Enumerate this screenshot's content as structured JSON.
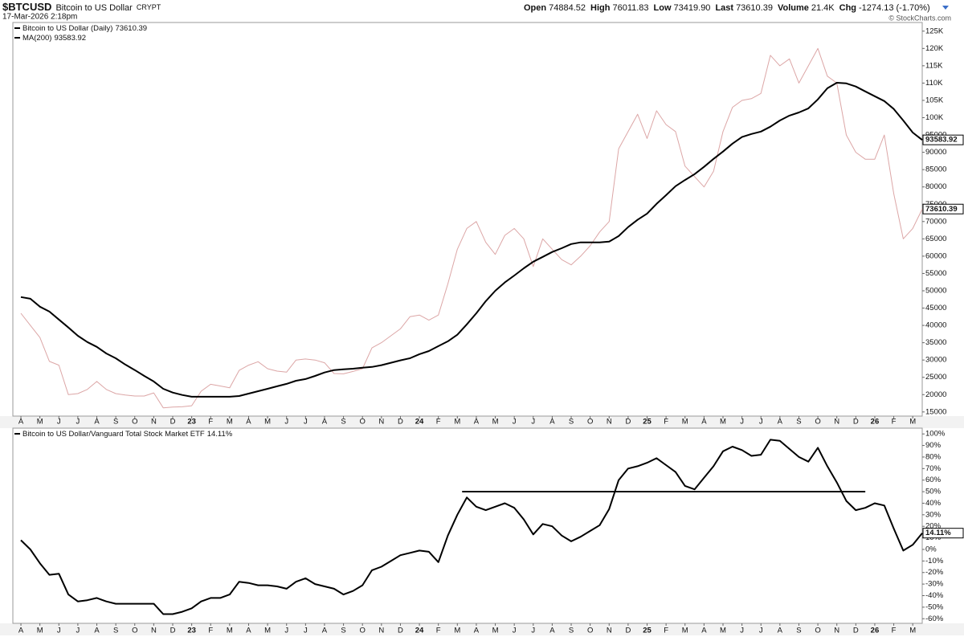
{
  "header": {
    "symbol": "$BTCUSD",
    "name": "Bitcoin to US Dollar",
    "exchange": "CRYPT",
    "datetime": "17-Mar-2026 2:18pm",
    "quote": [
      {
        "label": "Open",
        "value": "74884.52"
      },
      {
        "label": "High",
        "value": "76011.83"
      },
      {
        "label": "Low",
        "value": "73419.90"
      },
      {
        "label": "Last",
        "value": "73610.39"
      },
      {
        "label": "Volume",
        "value": "21.4K"
      },
      {
        "label": "Chg",
        "value": "-1274.13 (-1.70%)"
      }
    ],
    "credit": "© StockCharts.com"
  },
  "chart_data": [
    {
      "type": "line",
      "categories": [
        "A",
        null,
        "M",
        null,
        "J",
        null,
        "J",
        null,
        "A",
        null,
        "S",
        null,
        "O",
        null,
        "N",
        null,
        "D",
        null,
        "23",
        null,
        "F",
        null,
        "M",
        null,
        "A",
        null,
        "M",
        null,
        "J",
        null,
        "J",
        null,
        "A",
        null,
        "S",
        null,
        "O",
        null,
        "N",
        null,
        "D",
        null,
        "24",
        null,
        "F",
        null,
        "M",
        null,
        "A",
        null,
        "M",
        null,
        "J",
        null,
        "J",
        null,
        "A",
        null,
        "S",
        null,
        "O",
        null,
        "N",
        null,
        "D",
        null,
        "25",
        null,
        "F",
        null,
        "M",
        null,
        "A",
        null,
        "M",
        null,
        "J",
        null,
        "J",
        null,
        "A",
        null,
        "S",
        null,
        "O",
        null,
        "N",
        null,
        "D",
        null,
        "26",
        null,
        "F",
        null,
        "M",
        null
      ],
      "series": [
        {
          "name": "Bitcoin to US Dollar (Daily)",
          "color": "#dca6a6",
          "values": [
            43500,
            40000,
            36500,
            29600,
            28500,
            20000,
            20300,
            21500,
            23800,
            21500,
            20300,
            19900,
            19600,
            19600,
            20500,
            16200,
            16400,
            16500,
            16800,
            21000,
            23000,
            22500,
            22000,
            27000,
            28500,
            29500,
            27500,
            26800,
            26500,
            30000,
            30300,
            30000,
            29200,
            26100,
            26000,
            26700,
            27500,
            33500,
            35000,
            37000,
            39000,
            42500,
            43000,
            41500,
            43000,
            52000,
            62000,
            68000,
            70000,
            64000,
            60500,
            66000,
            68000,
            65000,
            57000,
            65000,
            62000,
            59000,
            57500,
            60000,
            63000,
            67000,
            70000,
            91000,
            96000,
            101000,
            94000,
            102000,
            98000,
            96000,
            86000,
            83000,
            80000,
            84500,
            96000,
            103000,
            105000,
            105500,
            107000,
            118000,
            115000,
            117000,
            110000,
            115000,
            120000,
            112000,
            110000,
            95000,
            90000,
            88000,
            88000,
            95000,
            78000,
            65000,
            68000,
            73610.39
          ]
        },
        {
          "name": "MA(200)",
          "color": "#000000",
          "values": [
            48200,
            47700,
            45400,
            44000,
            41700,
            39400,
            37000,
            35200,
            33800,
            31900,
            30500,
            28700,
            27100,
            25400,
            23800,
            21700,
            20600,
            19900,
            19400,
            19400,
            19400,
            19400,
            19400,
            19600,
            20300,
            21000,
            21700,
            22400,
            23100,
            24000,
            24500,
            25400,
            26400,
            27100,
            27300,
            27500,
            27800,
            28000,
            28500,
            29200,
            29900,
            30500,
            31700,
            32600,
            34000,
            35400,
            37300,
            40300,
            43500,
            47000,
            50000,
            52400,
            54400,
            56500,
            58400,
            59800,
            61200,
            62300,
            63500,
            64000,
            64000,
            64000,
            64200,
            65800,
            68400,
            70500,
            72300,
            75100,
            77600,
            80200,
            82000,
            83700,
            85800,
            88100,
            90200,
            92500,
            94400,
            95300,
            96000,
            97400,
            99200,
            100600,
            101500,
            102700,
            105300,
            108500,
            110100,
            109900,
            109000,
            107600,
            106200,
            104800,
            102500,
            99200,
            95700,
            93583.92
          ]
        }
      ],
      "ylim": [
        13800,
        127500
      ],
      "yticks": [
        15000,
        20000,
        25000,
        30000,
        35000,
        40000,
        45000,
        50000,
        55000,
        60000,
        65000,
        70000,
        75000,
        80000,
        85000,
        90000,
        95000,
        {
          "value": 100000,
          "label": "100K"
        },
        {
          "value": 105000,
          "label": "105K"
        },
        {
          "value": 110000,
          "label": "110K"
        },
        {
          "value": 115000,
          "label": "115K"
        },
        {
          "value": 120000,
          "label": "120K"
        },
        {
          "value": 125000,
          "label": "125K"
        }
      ],
      "grid": false
    },
    {
      "type": "line",
      "categories": [
        "A",
        null,
        "M",
        null,
        "J",
        null,
        "J",
        null,
        "A",
        null,
        "S",
        null,
        "O",
        null,
        "N",
        null,
        "D",
        null,
        "23",
        null,
        "F",
        null,
        "M",
        null,
        "A",
        null,
        "M",
        null,
        "J",
        null,
        "J",
        null,
        "A",
        null,
        "S",
        null,
        "O",
        null,
        "N",
        null,
        "D",
        null,
        "24",
        null,
        "F",
        null,
        "M",
        null,
        "A",
        null,
        "M",
        null,
        "J",
        null,
        "J",
        null,
        "A",
        null,
        "S",
        null,
        "O",
        null,
        "N",
        null,
        "D",
        null,
        "25",
        null,
        "F",
        null,
        "M",
        null,
        "A",
        null,
        "M",
        null,
        "J",
        null,
        "J",
        null,
        "A",
        null,
        "S",
        null,
        "O",
        null,
        "N",
        null,
        "D",
        null,
        "26",
        null,
        "F",
        null,
        "M",
        null
      ],
      "series": [
        {
          "name": "Bitcoin to US Dollar/Vanguard Total Stock Market ETF",
          "color": "#000000",
          "values": [
            8,
            0,
            -12,
            -22,
            -21,
            -39,
            -45,
            -44,
            -42,
            -45,
            -47,
            -47,
            -47,
            -47,
            -47,
            -56,
            -56,
            -54,
            -51,
            -45,
            -42,
            -42,
            -39,
            -28,
            -29,
            -31,
            -31,
            -32,
            -34,
            -28,
            -25,
            -30,
            -32,
            -34,
            -39,
            -36,
            -31,
            -18,
            -15,
            -10,
            -5,
            -3,
            -1,
            -2,
            -11,
            12,
            30,
            45,
            37,
            34,
            37,
            40,
            36,
            26,
            13,
            22,
            20,
            12,
            7,
            11,
            16,
            21,
            35,
            60,
            70,
            72,
            75,
            79,
            73,
            67,
            55,
            52,
            62,
            72,
            85,
            89,
            86,
            81,
            82,
            95,
            94,
            87,
            80,
            76,
            88,
            72,
            58,
            42,
            34,
            36,
            40,
            38,
            18,
            -1,
            4,
            14.11
          ],
          "value_labels": [
            null,
            null,
            null,
            null,
            null,
            null,
            null,
            null,
            null,
            null,
            null,
            null,
            null,
            null,
            null,
            null,
            null,
            null,
            null,
            null,
            null,
            null,
            null,
            null,
            null,
            null,
            null,
            null,
            null,
            null,
            null,
            null,
            null,
            null,
            null,
            null,
            null,
            null,
            null,
            null,
            null,
            null,
            null,
            null,
            null,
            null,
            null,
            null,
            null,
            null,
            null,
            null,
            null,
            null,
            null,
            null,
            null,
            null,
            null,
            null,
            null,
            null,
            null,
            null,
            null,
            null,
            null,
            null,
            null,
            null,
            null,
            null,
            null,
            null,
            null,
            null,
            null,
            null,
            null,
            null,
            null,
            null,
            null,
            null,
            null,
            null,
            null,
            null,
            null,
            null,
            null,
            null,
            null,
            null,
            null,
            "14.11%"
          ]
        }
      ],
      "ylim": [
        -64,
        105
      ],
      "yticks": [
        {
          "value": -60,
          "label": "-60%"
        },
        {
          "value": -50,
          "label": "-50%"
        },
        {
          "value": -40,
          "label": "-40%"
        },
        {
          "value": -30,
          "label": "-30%"
        },
        {
          "value": -20,
          "label": "-20%"
        },
        {
          "value": -10,
          "label": "-10%"
        },
        {
          "value": 0,
          "label": "0%"
        },
        {
          "value": 10,
          "label": "10%"
        },
        {
          "value": 20,
          "label": "20%"
        },
        {
          "value": 30,
          "label": "30%"
        },
        {
          "value": 40,
          "label": "40%"
        },
        {
          "value": 50,
          "label": "50%"
        },
        {
          "value": 60,
          "label": "60%"
        },
        {
          "value": 70,
          "label": "70%"
        },
        {
          "value": 80,
          "label": "80%"
        },
        {
          "value": 90,
          "label": "90%"
        },
        {
          "value": 100,
          "label": "100%"
        }
      ],
      "hline": {
        "value": 50,
        "x_range": [
          46.5,
          89
        ],
        "color": "#000000"
      },
      "grid": false
    }
  ]
}
